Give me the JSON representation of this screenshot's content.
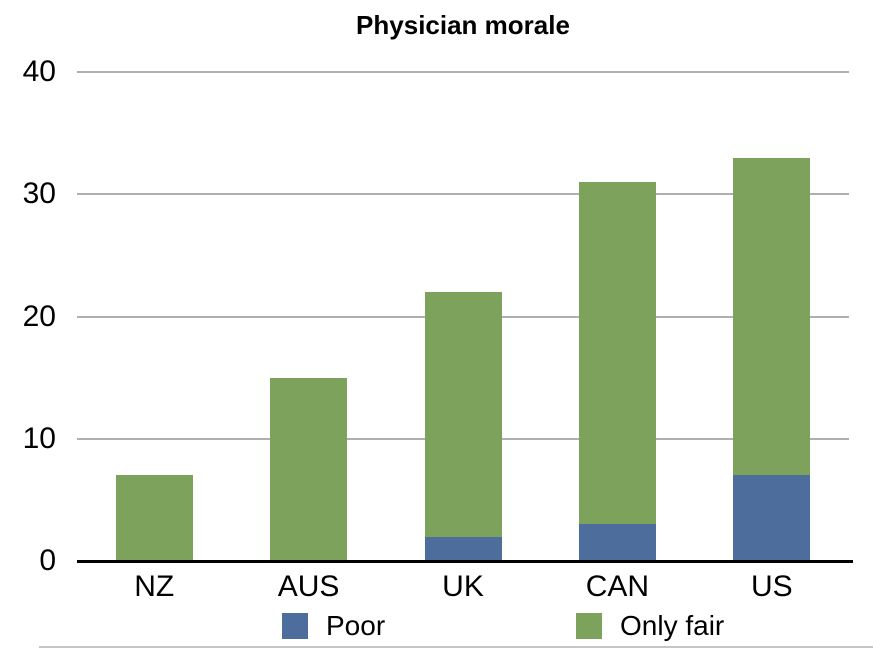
{
  "chart_data": {
    "type": "bar",
    "stacked": true,
    "title": "Physician morale",
    "categories": [
      "NZ",
      "AUS",
      "UK",
      "CAN",
      "US"
    ],
    "series": [
      {
        "name": "Poor",
        "color": "#4D6E9D",
        "values": [
          0,
          0,
          2,
          3,
          7
        ]
      },
      {
        "name": "Only fair",
        "color": "#7CA25C",
        "values": [
          7,
          15,
          20,
          28,
          26
        ]
      }
    ],
    "stacked_totals": [
      7,
      15,
      22,
      31,
      33
    ],
    "xlabel": "",
    "ylabel": "",
    "ylim": [
      0,
      40
    ],
    "yticks": [
      40,
      30,
      20,
      10,
      0
    ],
    "grid": true,
    "legend_position": "bottom",
    "colors": {
      "gridline": "#AFAFAF",
      "axis": "#000000",
      "background": "#FFFFFF",
      "text": "#000000"
    }
  }
}
